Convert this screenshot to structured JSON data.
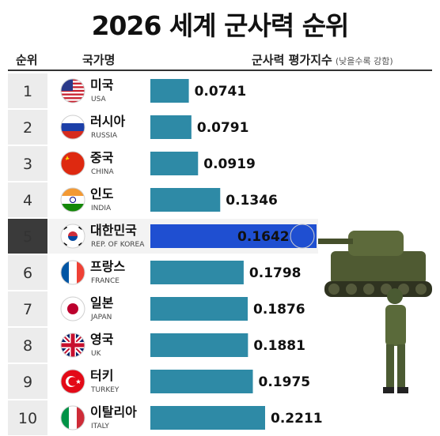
{
  "title": "2026 세계 군사력 순위",
  "headers": {
    "rank": "순위",
    "country": "국가명",
    "index": "군사력 평가지수",
    "note": "(낮을수록 강함)"
  },
  "highlight_rank": 5,
  "colors": {
    "bar": "#2e8aa6",
    "highlight_bar": "#1f4fd1",
    "highlight_bg": "#3a3a3a",
    "row_alt": "#ececec"
  },
  "chart_data": {
    "type": "bar",
    "orientation": "horizontal",
    "title": "2026 세계 군사력 순위",
    "xlabel": "군사력 평가지수",
    "categories": [
      "미국",
      "러시아",
      "중국",
      "인도",
      "대한민국",
      "프랑스",
      "일본",
      "영국",
      "터키",
      "이탈리아"
    ],
    "categories_en": [
      "USA",
      "RUSSIA",
      "CHINA",
      "INDIA",
      "REP. OF KOREA",
      "FRANCE",
      "JAPAN",
      "UK",
      "TURKEY",
      "ITALY"
    ],
    "ranks": [
      "1",
      "2",
      "3",
      "4",
      "5",
      "6",
      "7",
      "8",
      "9",
      "10"
    ],
    "values": [
      0.0741,
      0.0791,
      0.0919,
      0.1346,
      0.1642,
      0.1798,
      0.1876,
      0.1881,
      0.1975,
      0.2211
    ],
    "value_labels": [
      "0.0741",
      "0.0791",
      "0.0919",
      "0.1346",
      "0.1642",
      "0.1798",
      "0.1876",
      "0.1881",
      "0.1975",
      "0.2211"
    ],
    "flags": [
      "usa-flag",
      "russia-flag",
      "china-flag",
      "india-flag",
      "korea-flag",
      "france-flag",
      "japan-flag",
      "uk-flag",
      "turkey-flag",
      "italy-flag"
    ]
  }
}
